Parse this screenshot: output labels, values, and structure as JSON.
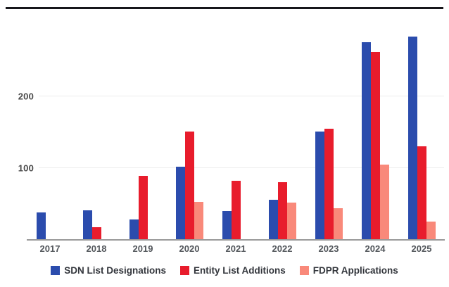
{
  "chart_data": {
    "type": "bar",
    "title": "",
    "categories": [
      "2017",
      "2018",
      "2019",
      "2020",
      "2021",
      "2022",
      "2023",
      "2024",
      "2025"
    ],
    "series": [
      {
        "name": "SDN List Designations",
        "color": "#2b4cad",
        "values": [
          38,
          40,
          28,
          102,
          39,
          55,
          151,
          276,
          284
        ]
      },
      {
        "name": "Entity List Additions",
        "color": "#e81c2c",
        "values": [
          0,
          17,
          89,
          151,
          82,
          80,
          155,
          263,
          130
        ]
      },
      {
        "name": "FDPR Applications",
        "color": "#f9897a",
        "values": [
          0,
          0,
          0,
          52,
          0,
          51,
          43,
          105,
          25
        ]
      }
    ],
    "xlabel": "",
    "ylabel": "",
    "ylim": [
      0,
      300
    ],
    "yticks": [
      100,
      200
    ],
    "grid": true,
    "legend_position": "bottom"
  },
  "colors": {
    "background": "#ffffff",
    "top_rule": "#17171b",
    "gridline": "#ededed",
    "axis_line": "#9a9a9a",
    "tick_text": "#4a4a4a",
    "category_text": "#53575c",
    "legend_text": "#33363c"
  }
}
